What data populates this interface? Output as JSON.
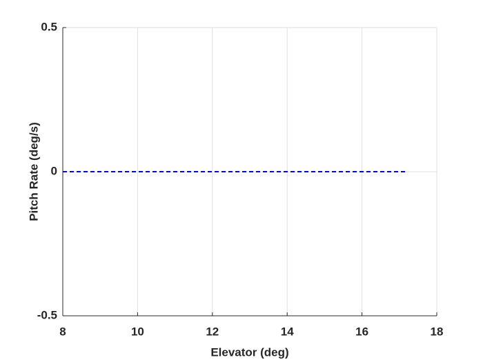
{
  "chart_data": {
    "type": "line",
    "x_label": "Elevator (deg)",
    "y_label": "Pitch Rate (deg/s)",
    "x": [
      8,
      17.2
    ],
    "series": [
      {
        "values": [
          0,
          0
        ],
        "color": "#0000ff"
      }
    ],
    "xlim": [
      8,
      18
    ],
    "xticks": [
      8,
      10,
      12,
      14,
      16,
      18
    ],
    "ylim": [
      -0.5,
      0.5
    ],
    "yticks": [
      -0.5,
      0,
      0.5
    ],
    "grid": true,
    "line_style": "dashed"
  }
}
